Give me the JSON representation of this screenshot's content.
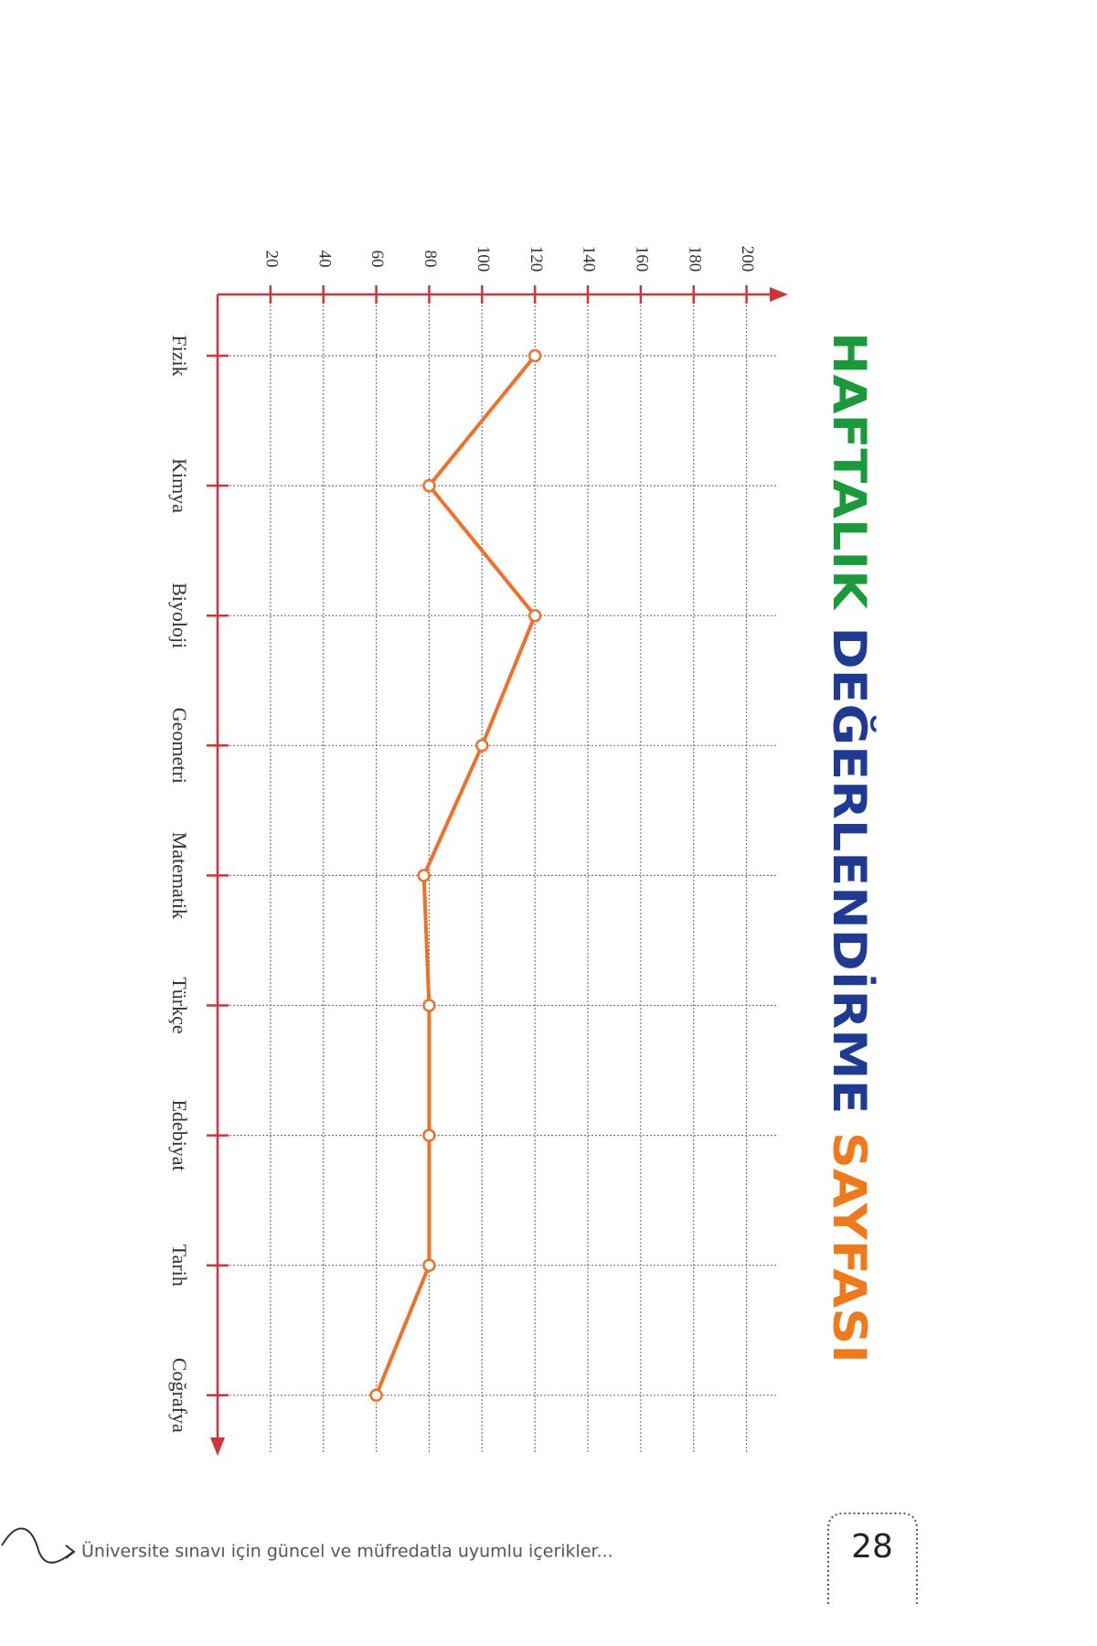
{
  "chart_data": {
    "type": "line",
    "title": [
      "HAFTALIK",
      "DEĞERLENDİRME",
      "SAYFASI"
    ],
    "title_colors": [
      "#1a9a3a",
      "#1f3a93",
      "#f07a1a"
    ],
    "categories": [
      "Fizik",
      "Kimya",
      "Biyoloji",
      "Geometri",
      "Matematik",
      "Türkçe",
      "Edebiyat",
      "Tarih",
      "Coğrafya"
    ],
    "values": [
      120,
      80,
      120,
      100,
      78,
      80,
      80,
      80,
      60
    ],
    "color": "#f07028",
    "axis_color": "#d0343a",
    "xlim": [
      0,
      215
    ],
    "xticks": [
      20,
      40,
      60,
      80,
      100,
      120,
      140,
      160,
      180,
      200
    ],
    "grid": true
  },
  "footer": {
    "text": "Üniversite sınavı için güncel ve müfredatla uyumlu içerikler...",
    "page": "28"
  }
}
